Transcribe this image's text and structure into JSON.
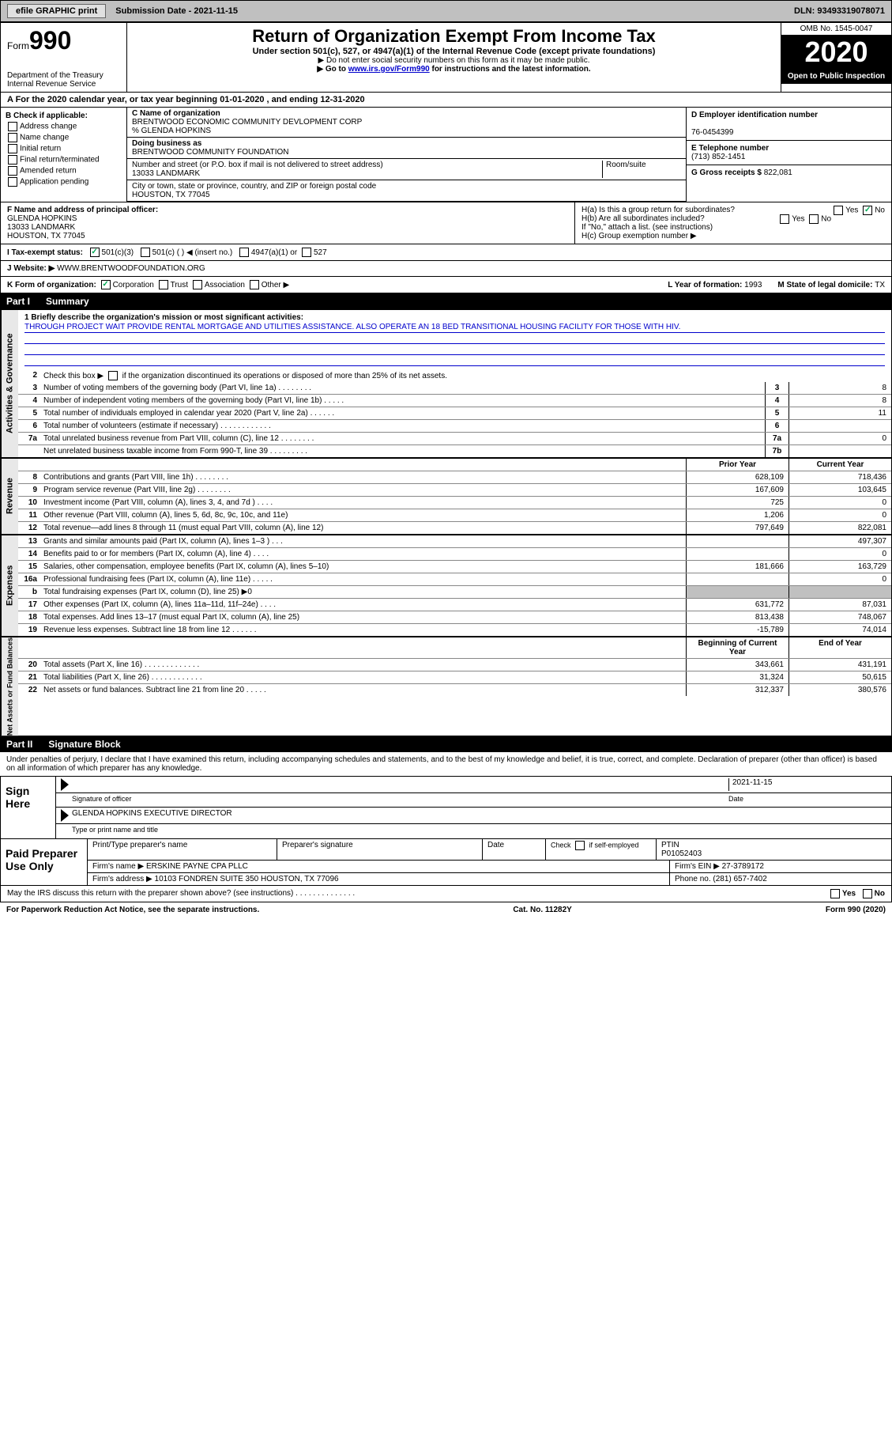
{
  "header": {
    "efile": "efile GRAPHIC print",
    "submission_label": "Submission Date - ",
    "submission_date": "2021-11-15",
    "dln_label": "DLN: ",
    "dln": "93493319078071"
  },
  "form_header": {
    "form_word": "Form",
    "form_num": "990",
    "dept1": "Department of the Treasury",
    "dept2": "Internal Revenue Service",
    "title": "Return of Organization Exempt From Income Tax",
    "subtitle": "Under section 501(c), 527, or 4947(a)(1) of the Internal Revenue Code (except private foundations)",
    "note1": "▶ Do not enter social security numbers on this form as it may be made public.",
    "note2_pre": "▶ Go to ",
    "note2_link": "www.irs.gov/Form990",
    "note2_post": " for instructions and the latest information.",
    "omb": "OMB No. 1545-0047",
    "year": "2020",
    "open": "Open to Public Inspection"
  },
  "period": "A For the 2020 calendar year, or tax year beginning 01-01-2020    , and ending 12-31-2020",
  "section_b": {
    "label": "B Check if applicable:",
    "items": [
      "Address change",
      "Name change",
      "Initial return",
      "Final return/terminated",
      "Amended return",
      "Application pending"
    ]
  },
  "section_c": {
    "name_label": "C Name of organization",
    "name": "BRENTWOOD ECONOMIC COMMUNITY DEVLOPMENT CORP",
    "care_of": "% GLENDA HOPKINS",
    "dba_label": "Doing business as",
    "dba": "BRENTWOOD COMMUNITY FOUNDATION",
    "addr_label": "Number and street (or P.O. box if mail is not delivered to street address)",
    "addr": "13033 LANDMARK",
    "room_label": "Room/suite",
    "city_label": "City or town, state or province, country, and ZIP or foreign postal code",
    "city": "HOUSTON, TX  77045"
  },
  "section_d": {
    "label": "D Employer identification number",
    "ein": "76-0454399"
  },
  "section_e": {
    "label": "E Telephone number",
    "phone": "(713) 852-1451"
  },
  "section_g": {
    "label": "G Gross receipts $ ",
    "amount": "822,081"
  },
  "section_f": {
    "label": "F Name and address of principal officer:",
    "name": "GLENDA HOPKINS",
    "addr1": "13033 LANDMARK",
    "addr2": "HOUSTON, TX  77045"
  },
  "section_h": {
    "ha": "H(a)  Is this a group return for subordinates?",
    "hb": "H(b)  Are all subordinates included?",
    "hb_note": "If \"No,\" attach a list. (see instructions)",
    "hc": "H(c)  Group exemption number ▶"
  },
  "tax_status": {
    "label": "I    Tax-exempt status:",
    "opts": [
      "501(c)(3)",
      "501(c) (  ) ◀ (insert no.)",
      "4947(a)(1) or",
      "527"
    ]
  },
  "website": {
    "label": "J   Website: ▶",
    "url": "WWW.BRENTWOODFOUNDATION.ORG"
  },
  "k_org": {
    "label": "K Form of organization:",
    "opts": [
      "Corporation",
      "Trust",
      "Association",
      "Other ▶"
    ]
  },
  "l_year": {
    "label": "L Year of formation: ",
    "val": "1993"
  },
  "m_state": {
    "label": "M State of legal domicile: ",
    "val": "TX"
  },
  "part1": {
    "num": "Part I",
    "title": "Summary",
    "line1_label": "1   Briefly describe the organization's mission or most significant activities:",
    "mission": "THROUGH PROJECT WAIT PROVIDE RENTAL MORTGAGE AND UTILITIES ASSISTANCE. ALSO OPERATE AN 18 BED TRANSITIONAL HOUSING FACILITY FOR THOSE WITH HIV.",
    "line2": "Check this box ▶        if the organization discontinued its operations or disposed of more than 25% of its net assets.",
    "governance_rows": [
      {
        "n": "3",
        "t": "Number of voting members of the governing body (Part VI, line 1a)  .    .    .    .    .    .    .    .",
        "box": "3",
        "v": "8"
      },
      {
        "n": "4",
        "t": "Number of independent voting members of the governing body (Part VI, line 1b)  .    .    .    .    .",
        "box": "4",
        "v": "8"
      },
      {
        "n": "5",
        "t": "Total number of individuals employed in calendar year 2020 (Part V, line 2a)  .    .    .    .    .    .",
        "box": "5",
        "v": "11"
      },
      {
        "n": "6",
        "t": "Total number of volunteers (estimate if necessary)  .    .    .    .    .    .    .    .    .    .    .    .",
        "box": "6",
        "v": ""
      },
      {
        "n": "7a",
        "t": "Total unrelated business revenue from Part VIII, column (C), line 12  .    .    .    .    .    .    .    .",
        "box": "7a",
        "v": "0"
      },
      {
        "n": "",
        "t": "Net unrelated business taxable income from Form 990-T, line 39  .    .    .    .    .    .    .    .    .",
        "box": "7b",
        "v": ""
      }
    ],
    "prior_label": "Prior Year",
    "current_label": "Current Year",
    "revenue_rows": [
      {
        "n": "8",
        "t": "Contributions and grants (Part VIII, line 1h)  .    .    .    .    .    .    .    .",
        "p": "628,109",
        "c": "718,436"
      },
      {
        "n": "9",
        "t": "Program service revenue (Part VIII, line 2g)  .    .    .    .    .    .    .    .",
        "p": "167,609",
        "c": "103,645"
      },
      {
        "n": "10",
        "t": "Investment income (Part VIII, column (A), lines 3, 4, and 7d )  .    .    .    .",
        "p": "725",
        "c": "0"
      },
      {
        "n": "11",
        "t": "Other revenue (Part VIII, column (A), lines 5, 6d, 8c, 9c, 10c, and 11e)",
        "p": "1,206",
        "c": "0"
      },
      {
        "n": "12",
        "t": "Total revenue—add lines 8 through 11 (must equal Part VIII, column (A), line 12)",
        "p": "797,649",
        "c": "822,081"
      }
    ],
    "expense_rows": [
      {
        "n": "13",
        "t": "Grants and similar amounts paid (Part IX, column (A), lines 1–3 )  .    .    .",
        "p": "",
        "c": "497,307"
      },
      {
        "n": "14",
        "t": "Benefits paid to or for members (Part IX, column (A), line 4)  .    .    .    .",
        "p": "",
        "c": "0"
      },
      {
        "n": "15",
        "t": "Salaries, other compensation, employee benefits (Part IX, column (A), lines 5–10)",
        "p": "181,666",
        "c": "163,729"
      },
      {
        "n": "16a",
        "t": "Professional fundraising fees (Part IX, column (A), line 11e)  .    .    .    .    .",
        "p": "",
        "c": "0"
      },
      {
        "n": "b",
        "t": "Total fundraising expenses (Part IX, column (D), line 25) ▶0",
        "p": "SHADE",
        "c": "SHADE"
      },
      {
        "n": "17",
        "t": "Other expenses (Part IX, column (A), lines 11a–11d, 11f–24e)  .    .    .    .",
        "p": "631,772",
        "c": "87,031"
      },
      {
        "n": "18",
        "t": "Total expenses. Add lines 13–17 (must equal Part IX, column (A), line 25)",
        "p": "813,438",
        "c": "748,067"
      },
      {
        "n": "19",
        "t": "Revenue less expenses. Subtract line 18 from line 12  .    .    .    .    .    .",
        "p": "-15,789",
        "c": "74,014"
      }
    ],
    "balance_header": {
      "p": "Beginning of Current Year",
      "c": "End of Year"
    },
    "balance_rows": [
      {
        "n": "20",
        "t": "Total assets (Part X, line 16)  .    .    .    .    .    .    .    .    .    .    .    .    .",
        "p": "343,661",
        "c": "431,191"
      },
      {
        "n": "21",
        "t": "Total liabilities (Part X, line 26)  .    .    .    .    .    .    .    .    .    .    .    .",
        "p": "31,324",
        "c": "50,615"
      },
      {
        "n": "22",
        "t": "Net assets or fund balances. Subtract line 21 from line 20  .    .    .    .    .",
        "p": "312,337",
        "c": "380,576"
      }
    ],
    "side_tabs": {
      "gov": "Activities & Governance",
      "rev": "Revenue",
      "exp": "Expenses",
      "bal": "Net Assets or Fund Balances"
    }
  },
  "part2": {
    "num": "Part II",
    "title": "Signature Block",
    "penalties": "Under penalties of perjury, I declare that I have examined this return, including accompanying schedules and statements, and to the best of my knowledge and belief, it is true, correct, and complete. Declaration of preparer (other than officer) is based on all information of which preparer has any knowledge.",
    "sign_here": "Sign Here",
    "sig_officer": "Signature of officer",
    "sig_date": "2021-11-15",
    "date_label": "Date",
    "officer_name": "GLENDA HOPKINS EXECUTIVE DIRECTOR",
    "type_name": "Type or print name and title",
    "paid_prep": "Paid Preparer Use Only",
    "prep_cols": {
      "c1": "Print/Type preparer's name",
      "c2": "Preparer's signature",
      "c3": "Date",
      "c4a": "Check          if self-employed",
      "c5_label": "PTIN",
      "c5": "P01052403"
    },
    "firm_name_label": "Firm's name     ▶ ",
    "firm_name": "ERSKINE PAYNE CPA PLLC",
    "firm_ein_label": "Firm's EIN ▶ ",
    "firm_ein": "27-3789172",
    "firm_addr_label": "Firm's address ▶ ",
    "firm_addr": "10103 FONDREN SUITE 350 HOUSTON, TX  77096",
    "firm_phone_label": "Phone no. ",
    "firm_phone": "(281) 657-7402",
    "discuss": "May the IRS discuss this return with the preparer shown above? (see instructions)  .    .    .    .    .    .    .    .    .    .    .    .    .    ."
  },
  "footer": {
    "paperwork": "For Paperwork Reduction Act Notice, see the separate instructions.",
    "cat": "Cat. No. 11282Y",
    "form": "Form 990 (2020)"
  },
  "yesno": {
    "yes": "Yes",
    "no": "No"
  }
}
